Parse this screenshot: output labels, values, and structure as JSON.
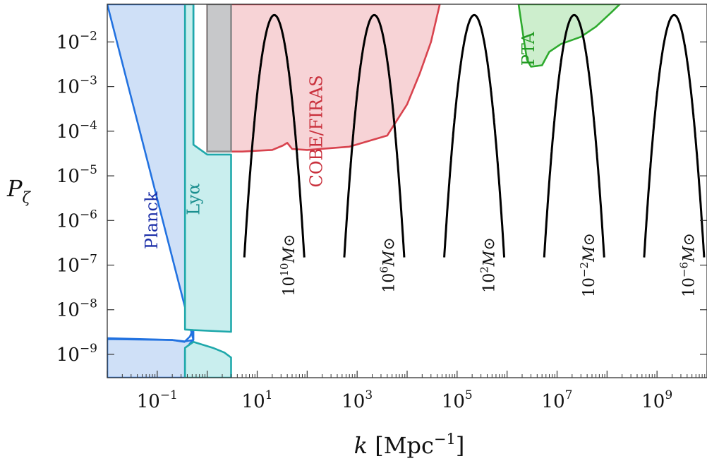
{
  "chart_data": {
    "type": "line",
    "title": "",
    "xlabel": "k [Mpc−1]",
    "xlabel_parts": {
      "var": "k",
      "unit_open": " [Mpc",
      "unit_exp": "−1",
      "unit_close": "]"
    },
    "ylabel": "Pζ",
    "ylabel_parts": {
      "base": "P",
      "sub": "ζ"
    },
    "x_scale": "log",
    "y_scale": "log",
    "xlim": [
      0.01,
      10000000000
    ],
    "ylim": [
      3e-10,
      0.07
    ],
    "grid": false,
    "x_ticks": [
      {
        "value": 0.1,
        "base": "10",
        "exp": "−1"
      },
      {
        "value": 10,
        "base": "10",
        "exp": "1"
      },
      {
        "value": 1000,
        "base": "10",
        "exp": "3"
      },
      {
        "value": 100000,
        "base": "10",
        "exp": "5"
      },
      {
        "value": 10000000,
        "base": "10",
        "exp": "7"
      },
      {
        "value": 1000000000,
        "base": "10",
        "exp": "9"
      }
    ],
    "y_ticks": [
      {
        "value": 0.01,
        "base": "10",
        "exp": "−2"
      },
      {
        "value": 0.001,
        "base": "10",
        "exp": "−3"
      },
      {
        "value": 0.0001,
        "base": "10",
        "exp": "−4"
      },
      {
        "value": 1e-05,
        "base": "10",
        "exp": "−5"
      },
      {
        "value": 1e-06,
        "base": "10",
        "exp": "−6"
      },
      {
        "value": 1e-07,
        "base": "10",
        "exp": "−7"
      },
      {
        "value": 1e-08,
        "base": "10",
        "exp": "−8"
      },
      {
        "value": 1e-09,
        "base": "10",
        "exp": "−9"
      }
    ],
    "regions": [
      {
        "name": "Planck",
        "label": "Planck",
        "fill": "#cfe0f7",
        "stroke": "#2272e0",
        "text_color": "#1c2fa8",
        "label_at": [
          0.1,
          1e-06
        ],
        "polygon": [
          [
            0.01,
            0.07
          ],
          [
            0.53,
            0.07
          ],
          [
            0.53,
            2.1e-09
          ],
          [
            0.35,
            1.95e-09
          ],
          [
            0.2,
            2.1e-09
          ],
          [
            0.01,
            2.2e-09
          ],
          [
            0.01,
            3e-10
          ],
          [
            0.36,
            3e-10
          ],
          [
            0.36,
            1.2e-09
          ],
          [
            0.45,
            1.75e-09
          ],
          [
            0.53,
            2.1e-09
          ]
        ],
        "outline": [
          [
            0.01,
            2.3e-09
          ],
          [
            0.2,
            2.1e-09
          ],
          [
            0.35,
            1.9e-09
          ],
          [
            0.45,
            2.5e-09
          ],
          [
            0.53,
            3.8e-09
          ],
          [
            0.53,
            0.07
          ]
        ]
      },
      {
        "name": "Lyα",
        "label": "Lyα",
        "fill": "#c9eeee",
        "stroke": "#1fa8ab",
        "text_color": "#1b8f8f",
        "label_at": [
          0.7,
          3e-06
        ],
        "polygon": [
          [
            0.36,
            0.07
          ],
          [
            0.53,
            0.07
          ],
          [
            0.53,
            5e-05
          ],
          [
            1.0,
            3e-05
          ],
          [
            3.0,
            3e-05
          ],
          [
            3.0,
            3.2e-09
          ],
          [
            0.53,
            3.5e-09
          ],
          [
            0.36,
            3.6e-09
          ]
        ],
        "lower_polygon": [
          [
            0.36,
            3e-10
          ],
          [
            0.36,
            1.4e-09
          ],
          [
            0.53,
            1.9e-09
          ],
          [
            1.3,
            1.4e-09
          ],
          [
            2.2,
            1.1e-09
          ],
          [
            3.0,
            8.5e-10
          ],
          [
            3.0,
            3e-10
          ]
        ]
      },
      {
        "name": "COBE/FIRAS",
        "label": "COBE/FIRAS",
        "fill": "#f7d3d6",
        "stroke": "#d8434e",
        "text_color": "#c9303c",
        "label_at": [
          200,
          0.0001
        ],
        "polygon": [
          [
            1.0,
            0.07
          ],
          [
            45000,
            0.07
          ],
          [
            30000,
            0.01
          ],
          [
            18000,
            0.002
          ],
          [
            10000,
            0.0004
          ],
          [
            4000,
            8e-05
          ],
          [
            700,
            4.5e-05
          ],
          [
            100,
            3.8e-05
          ],
          [
            50,
            4e-05
          ],
          [
            40,
            5.5e-05
          ],
          [
            33,
            4.8e-05
          ],
          [
            20,
            3.8e-05
          ],
          [
            5,
            3.5e-05
          ],
          [
            1.0,
            3.5e-05
          ]
        ]
      },
      {
        "name": "overlap",
        "fill": "#c7c8ca",
        "stroke": "#8a8a8a",
        "polygon": [
          [
            1.0,
            0.07
          ],
          [
            3.0,
            0.07
          ],
          [
            3.0,
            3.5e-05
          ],
          [
            1.0,
            3.5e-05
          ]
        ]
      },
      {
        "name": "PTA",
        "label": "PTA",
        "fill": "#cdeecd",
        "stroke": "#2eaa2e",
        "text_color": "#229a22",
        "label_at": [
          3500000,
          0.007
        ],
        "polygon": [
          [
            1700000,
            0.07
          ],
          [
            180000000,
            0.07
          ],
          [
            120000000,
            0.045
          ],
          [
            60000000,
            0.022
          ],
          [
            30000000,
            0.013
          ],
          [
            12000000,
            0.009
          ],
          [
            7000000,
            0.006
          ],
          [
            5000000,
            0.003
          ],
          [
            3000000,
            0.0028
          ],
          [
            2500000,
            0.004
          ],
          [
            2200000,
            0.01
          ],
          [
            1900000,
            0.03
          ]
        ]
      }
    ],
    "series": [
      {
        "name": "",
        "color": "#000000",
        "center_k": 22,
        "amplitude": 0.04,
        "width_dex": 0.12
      },
      {
        "name": "",
        "color": "#000000",
        "center_k": 2200,
        "amplitude": 0.04,
        "width_dex": 0.12
      },
      {
        "name": "",
        "color": "#000000",
        "center_k": 220000,
        "amplitude": 0.04,
        "width_dex": 0.12
      },
      {
        "name": "",
        "color": "#000000",
        "center_k": 22000000,
        "amplitude": 0.04,
        "width_dex": 0.12
      },
      {
        "name": "",
        "color": "#000000",
        "center_k": 2200000000,
        "amplitude": 0.04,
        "width_dex": 0.12
      }
    ],
    "annotations": [
      {
        "base": "10",
        "exp": "10",
        "unit": "M⊙",
        "at": [
          55,
          1e-07
        ]
      },
      {
        "base": "10",
        "exp": "6",
        "unit": "M⊙",
        "at": [
          5500,
          1e-07
        ]
      },
      {
        "base": "10",
        "exp": "2",
        "unit": "M⊙",
        "at": [
          550000,
          1e-07
        ]
      },
      {
        "base": "10",
        "exp": "−2",
        "unit": "M⊙",
        "at": [
          55000000,
          1e-07
        ]
      },
      {
        "base": "10",
        "exp": "−6",
        "unit": "M⊙",
        "at": [
          5500000000,
          1e-07
        ]
      }
    ]
  }
}
